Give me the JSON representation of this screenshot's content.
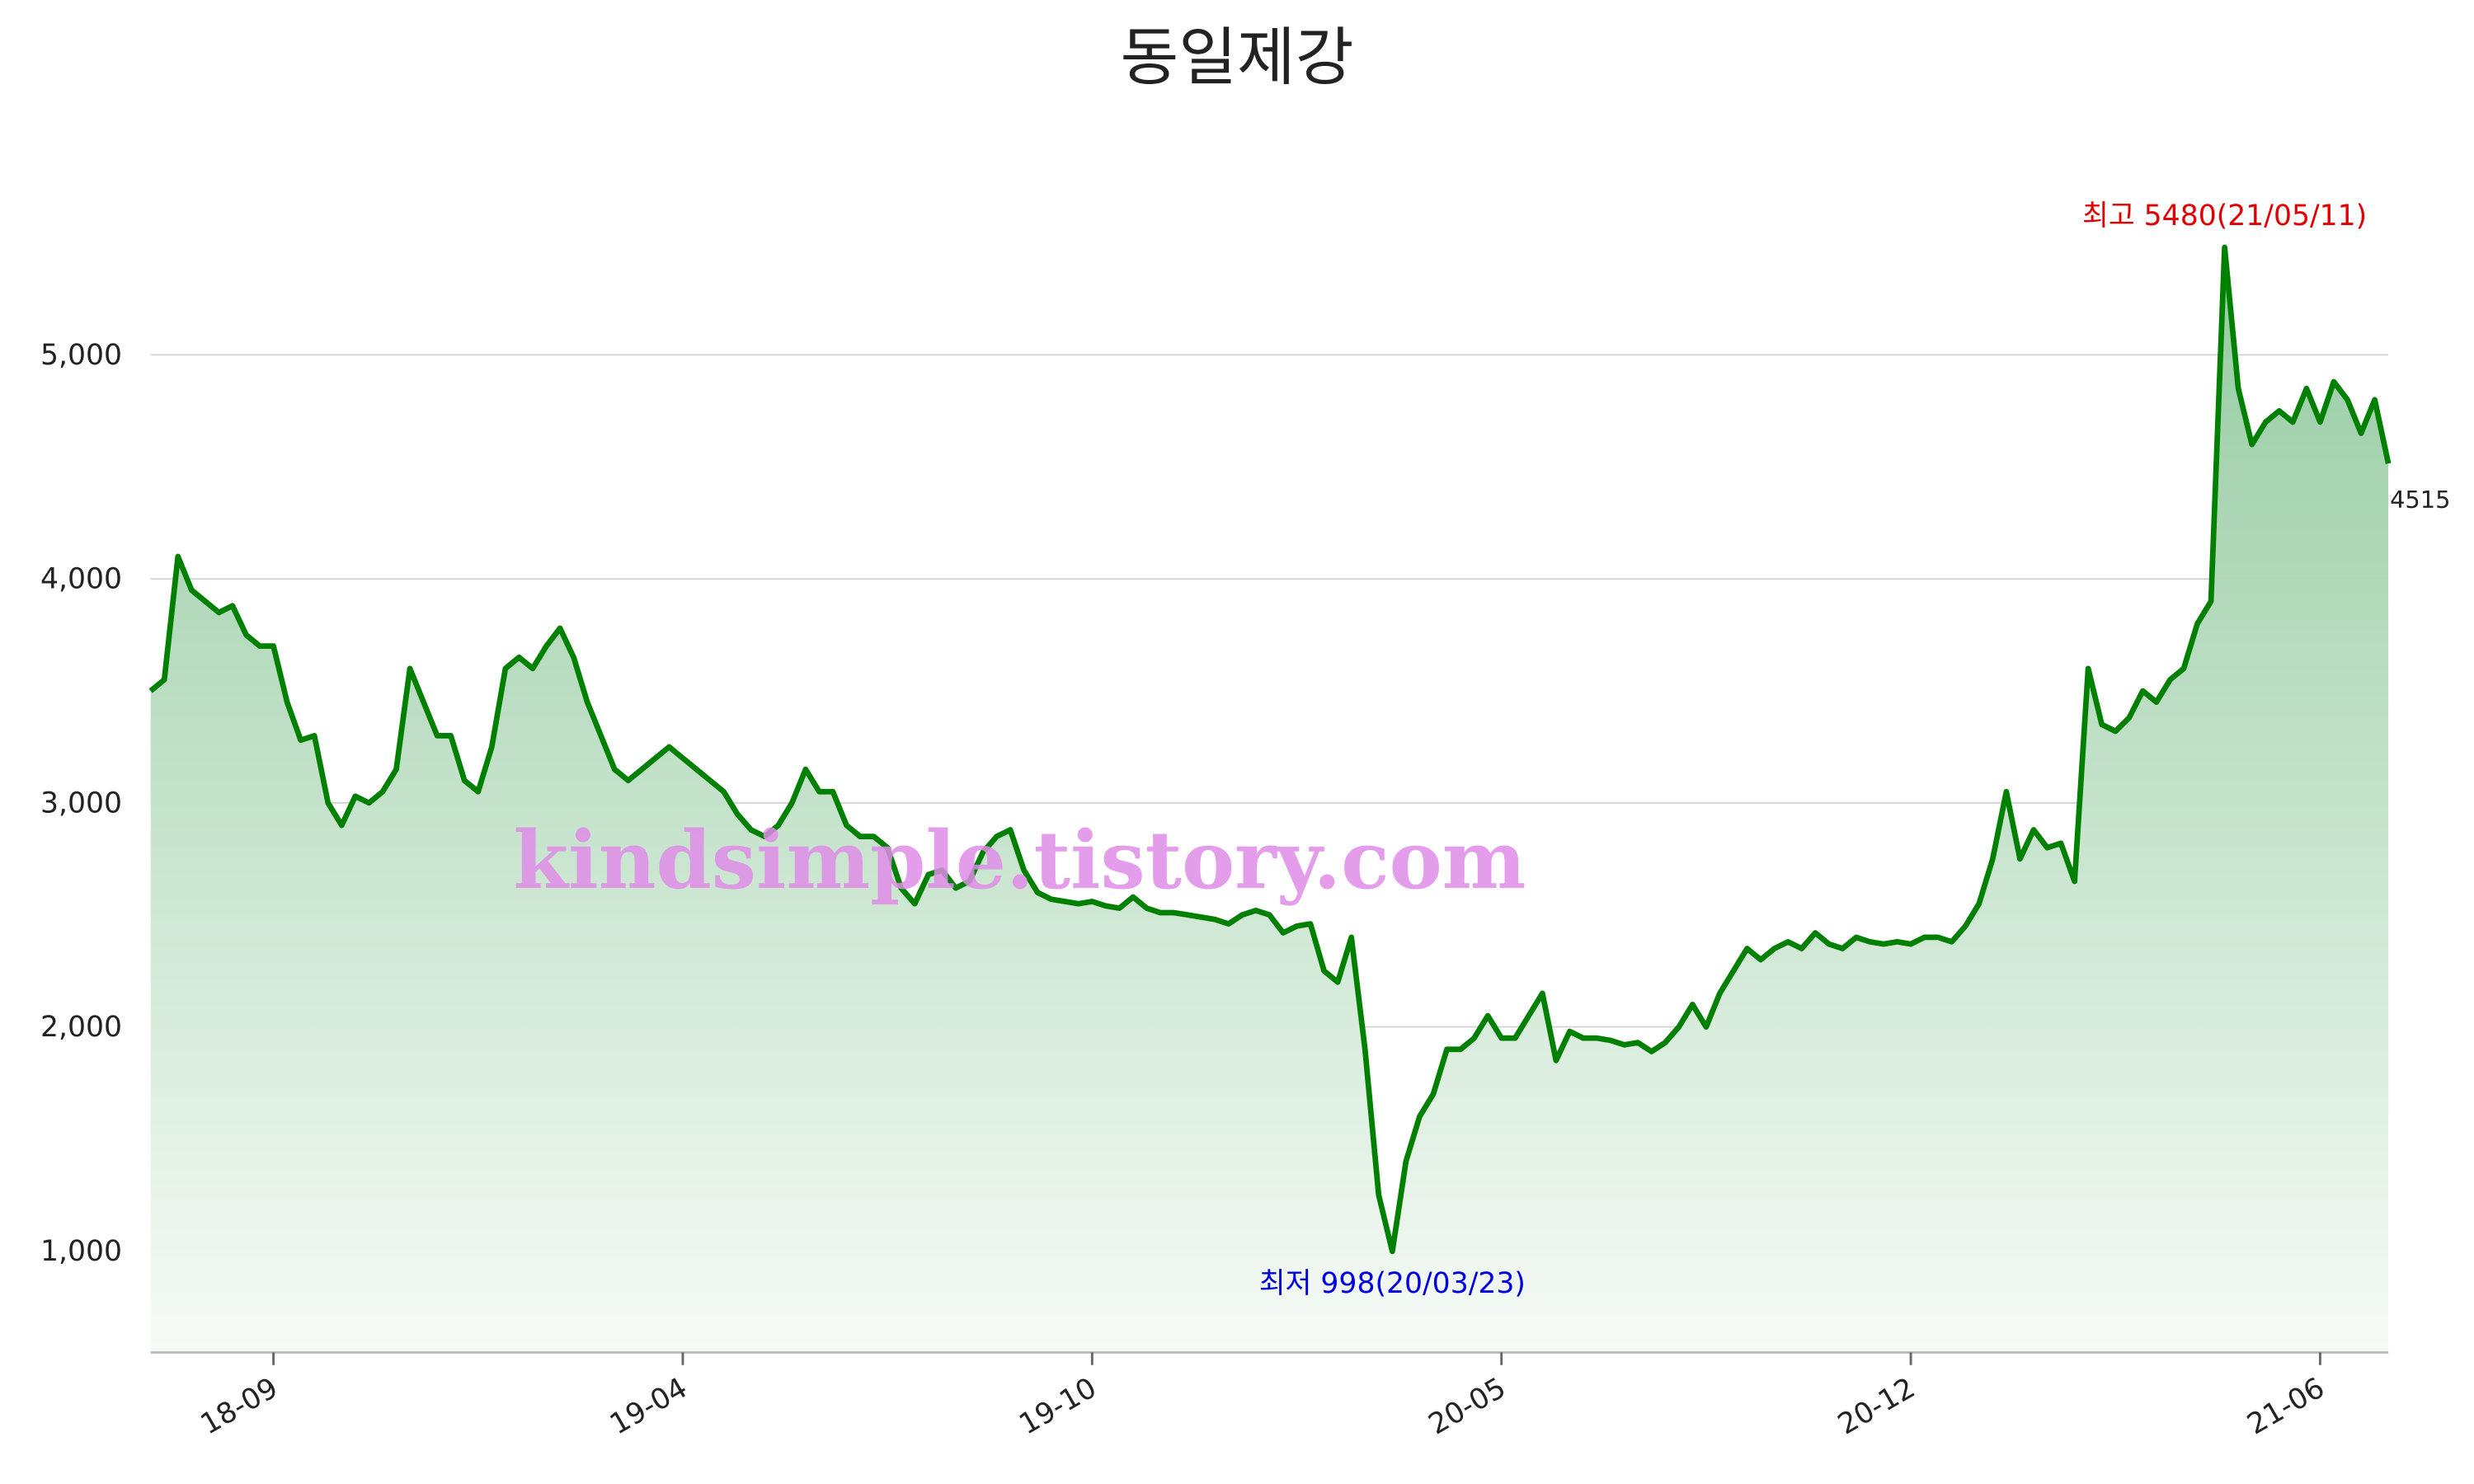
{
  "chart_data": {
    "type": "area-line",
    "title": "동일제강",
    "watermark": "kindsimple.tistory.com",
    "max_label": "최고 5480(21/05/11)",
    "min_label": "최저 998(20/03/23)",
    "categories": [
      null,
      null,
      null,
      null,
      null,
      null,
      null,
      null,
      null,
      "18-09",
      null,
      null,
      null,
      null,
      null,
      null,
      null,
      null,
      null,
      null,
      null,
      null,
      null,
      null,
      null,
      null,
      null,
      null,
      null,
      null,
      null,
      null,
      null,
      null,
      null,
      null,
      null,
      null,
      null,
      "19-04",
      null,
      null,
      null,
      null,
      null,
      null,
      null,
      null,
      null,
      null,
      null,
      null,
      null,
      null,
      null,
      null,
      null,
      null,
      null,
      null,
      null,
      null,
      null,
      null,
      null,
      null,
      null,
      null,
      null,
      "19-10",
      null,
      null,
      null,
      null,
      null,
      null,
      null,
      null,
      null,
      null,
      null,
      null,
      null,
      null,
      null,
      null,
      null,
      null,
      null,
      null,
      null,
      null,
      null,
      null,
      null,
      null,
      null,
      null,
      null,
      "20-05",
      null,
      null,
      null,
      null,
      null,
      null,
      null,
      null,
      null,
      null,
      null,
      null,
      null,
      null,
      null,
      null,
      null,
      null,
      null,
      null,
      null,
      null,
      null,
      null,
      null,
      null,
      null,
      null,
      null,
      "20-12",
      null,
      null,
      null,
      null,
      null,
      null,
      null,
      null,
      null,
      null,
      null,
      null,
      null,
      null,
      null,
      null,
      null,
      null,
      null,
      null,
      null,
      null,
      null,
      null,
      null,
      null,
      null,
      null,
      null,
      "21-06",
      null,
      null,
      null,
      null,
      null
    ],
    "series": [
      {
        "color": "#008000",
        "area_color": "#8fc89c",
        "values": [
          3500,
          3550,
          4100,
          3950,
          3900,
          3850,
          3880,
          3750,
          3700,
          3700,
          3450,
          3280,
          3300,
          3000,
          2900,
          3030,
          3000,
          3050,
          3150,
          3600,
          3450,
          3300,
          3300,
          3100,
          3050,
          3250,
          3600,
          3650,
          3600,
          3700,
          3780,
          3650,
          3450,
          3300,
          3150,
          3100,
          3150,
          3200,
          3250,
          3200,
          3150,
          3100,
          3050,
          2950,
          2880,
          2850,
          2900,
          3000,
          3150,
          3050,
          3050,
          2900,
          2850,
          2850,
          2800,
          2620,
          2550,
          2680,
          2700,
          2620,
          2650,
          2780,
          2850,
          2880,
          2700,
          2600,
          2570,
          2560,
          2550,
          2560,
          2540,
          2530,
          2580,
          2530,
          2510,
          2510,
          2500,
          2490,
          2480,
          2460,
          2500,
          2520,
          2500,
          2420,
          2450,
          2460,
          2250,
          2200,
          2400,
          1900,
          1250,
          998,
          1400,
          1600,
          1700,
          1900,
          1900,
          1950,
          2050,
          1950,
          1950,
          2050,
          2150,
          1850,
          1980,
          1950,
          1950,
          1940,
          1920,
          1930,
          1890,
          1930,
          2000,
          2100,
          2000,
          2150,
          2250,
          2350,
          2300,
          2350,
          2380,
          2350,
          2420,
          2370,
          2350,
          2400,
          2380,
          2370,
          2380,
          2370,
          2400,
          2400,
          2380,
          2450,
          2550,
          2750,
          3050,
          2750,
          2880,
          2800,
          2820,
          2650,
          3600,
          3350,
          3320,
          3380,
          3500,
          3450,
          3550,
          3600,
          3800,
          3900,
          5480,
          4850,
          4600,
          4700,
          4750,
          4700,
          4850,
          4700,
          4880,
          4800,
          4650,
          4800,
          4515
        ]
      }
    ],
    "ylim": [
      547,
      5650
    ],
    "yticks": [
      {
        "value": 1000,
        "label": "1,000"
      },
      {
        "value": 2000,
        "label": "2,000"
      },
      {
        "value": 3000,
        "label": "3,000"
      },
      {
        "value": 4000,
        "label": "4,000"
      },
      {
        "value": 5000,
        "label": "5,000"
      }
    ],
    "grid": true
  }
}
